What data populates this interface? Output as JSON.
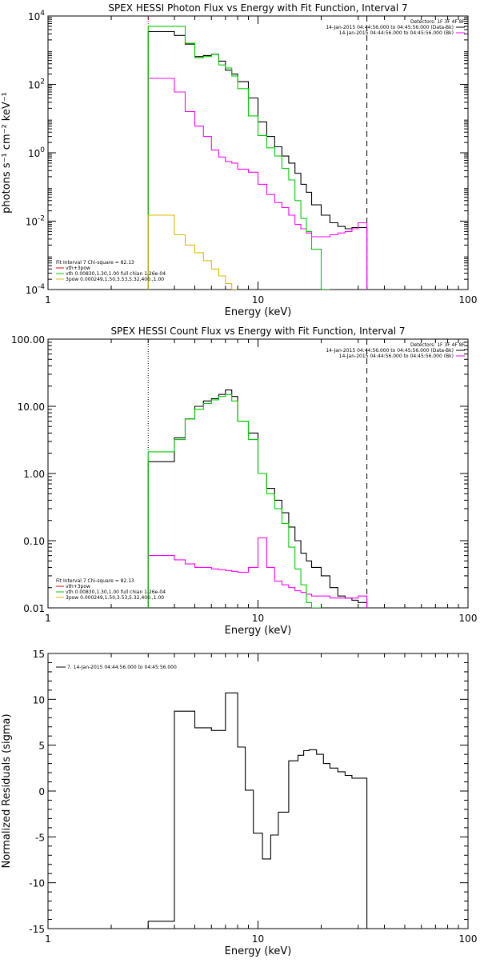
{
  "chart_data": [
    {
      "type": "line",
      "title": "SPEX HESSI Photon Flux vs Energy with Fit Function, Interval 7",
      "xlabel": "Energy (keV)",
      "ylabel": "photons s⁻¹ cm⁻² keV⁻¹",
      "xscale": "log",
      "yscale": "log",
      "xlim": [
        1,
        100
      ],
      "ylim": [
        0.0001,
        10000
      ],
      "xticks": [
        {
          "v": 1,
          "label": "1"
        },
        {
          "v": 10,
          "label": "10"
        },
        {
          "v": 100,
          "label": "100"
        }
      ],
      "yticks": [
        {
          "v": 0.0001,
          "base": "10",
          "exp": "-4"
        },
        {
          "v": 0.01,
          "base": "10",
          "exp": "-2"
        },
        {
          "v": 1,
          "base": "10",
          "exp": "0"
        },
        {
          "v": 100,
          "base": "10",
          "exp": "2"
        },
        {
          "v": 10000,
          "base": "10",
          "exp": "4"
        }
      ],
      "legend_top": {
        "header": "Detectors: 1F 3F 4F 8F",
        "entries": [
          {
            "text": "14-Jan-2015 04:44:56.000 to 04:45:56.000 (Data-Bk)",
            "color": "#000000"
          },
          {
            "text": "14-Jan-2015 04:44:56.000 to 04:45:56.000 (Bk)",
            "color": "#ff00ff"
          }
        ]
      },
      "legend_fit": {
        "header": "Fit Interval 7   Chi-square = 82.13",
        "entries": [
          {
            "text": "vth+3pow",
            "color": "#ff0000"
          },
          {
            "text": "vth 0.00830,1.30,1.00  full chian 1.26e-04",
            "color": "#00cc00"
          },
          {
            "text": "3pow 0.000249,1.50,3.53,5.32,400.,1.00",
            "color": "#ddbb00"
          }
        ]
      },
      "vlines": [
        {
          "x": 3.0,
          "style": "dotted",
          "color": "#ff0000"
        },
        {
          "x": 33.0,
          "style": "dashed",
          "color": "#000000"
        }
      ],
      "edges": [
        3.0,
        4.0,
        4.5,
        5.0,
        5.5,
        6.0,
        6.5,
        7.0,
        7.5,
        8.0,
        9.0,
        10.0,
        11.0,
        12.0,
        13.0,
        14.0,
        15.0,
        16.0,
        17.0,
        18.0,
        20.0,
        22.0,
        24.0,
        26.0,
        28.0,
        30.0,
        33.0
      ],
      "series": [
        {
          "name": "Data-Bk",
          "color": "#000000",
          "values": [
            3500,
            2700,
            1500,
            650,
            700,
            760,
            480,
            260,
            200,
            120,
            40,
            8,
            3,
            1.5,
            0.8,
            0.5,
            0.25,
            0.12,
            0.07,
            0.03,
            0.015,
            0.009,
            0.007,
            0.006,
            0.0065,
            0.0065
          ]
        },
        {
          "name": "Bk",
          "color": "#ff00ff",
          "values": [
            150,
            60,
            16,
            6,
            3,
            1.2,
            0.75,
            0.55,
            0.5,
            0.33,
            0.27,
            0.12,
            0.06,
            0.035,
            0.025,
            0.015,
            0.008,
            0.006,
            0.0045,
            0.0035,
            0.0035,
            0.004,
            0.0045,
            0.005,
            0.006,
            0.009
          ]
        },
        {
          "name": "vth+3pow",
          "color": "#00cc00",
          "values": [
            5000,
            5000,
            1600,
            600,
            650,
            750,
            370,
            300,
            175,
            75,
            12,
            3.2,
            1.4,
            0.8,
            0.35,
            0.16,
            0.04,
            0.012,
            0.005,
            0.0015,
            0.0001
          ]
        },
        {
          "name": "3pow",
          "color": "#ddbb00",
          "values": [
            0.015,
            0.004,
            0.002,
            0.0012,
            0.0007,
            0.0004,
            0.00025,
            0.00015,
            0.0001
          ]
        }
      ]
    },
    {
      "type": "line",
      "title": "SPEX HESSI Count Flux vs Energy with Fit Function, Interval 7",
      "xlabel": "Energy (keV)",
      "ylabel": "",
      "xscale": "log",
      "yscale": "log",
      "xlim": [
        1,
        100
      ],
      "ylim": [
        0.01,
        100
      ],
      "xticks": [
        {
          "v": 1,
          "label": "1"
        },
        {
          "v": 10,
          "label": "10"
        },
        {
          "v": 100,
          "label": "100"
        }
      ],
      "yticks": [
        {
          "v": 0.01,
          "label": "0.01"
        },
        {
          "v": 0.1,
          "label": "0.10"
        },
        {
          "v": 1,
          "label": "1.00"
        },
        {
          "v": 10,
          "label": "10.00"
        },
        {
          "v": 100,
          "label": "100.00"
        }
      ],
      "legend_top": {
        "header": "Detectors: 1F 3F 4F 8F",
        "entries": [
          {
            "text": "14-Jan-2015 04:44:56.000 to 04:45:56.000 (Data-Bk)",
            "color": "#000000"
          },
          {
            "text": "14-Jan-2015 04:44:56.000 to 04:45:56.000 (Bk)",
            "color": "#ff00ff"
          }
        ]
      },
      "legend_fit": {
        "header": "Fit Interval 7   Chi-square = 82.13",
        "entries": [
          {
            "text": "vth+3pow",
            "color": "#ff0000"
          },
          {
            "text": "vth 0.00830,1.30,1.00  full chian 1.26e-04",
            "color": "#00cc00"
          },
          {
            "text": "3pow 0.000249,1.50,3.53,5.32,400.,1.00",
            "color": "#ddbb00"
          }
        ]
      },
      "vlines": [
        {
          "x": 3.0,
          "style": "dotted",
          "color": "#000000"
        },
        {
          "x": 33.0,
          "style": "dashed",
          "color": "#000000"
        }
      ],
      "edges": [
        3.0,
        4.0,
        4.5,
        5.0,
        5.5,
        6.0,
        6.5,
        7.0,
        7.5,
        8.0,
        9.0,
        10.0,
        11.0,
        12.0,
        13.0,
        14.0,
        15.0,
        16.0,
        17.0,
        18.0,
        20.0,
        22.0,
        24.0,
        26.0,
        28.0,
        30.0,
        33.0
      ],
      "series": [
        {
          "name": "Data-Bk",
          "color": "#000000",
          "values": [
            1.5,
            3.4,
            6.5,
            10,
            12,
            13,
            15,
            17.5,
            14,
            6,
            4,
            1,
            0.6,
            0.4,
            0.26,
            0.16,
            0.1,
            0.065,
            0.05,
            0.04,
            0.03,
            0.02,
            0.015,
            0.014,
            0.013,
            0.012
          ]
        },
        {
          "name": "Bk",
          "color": "#ff00ff",
          "values": [
            0.06,
            0.052,
            0.045,
            0.04,
            0.04,
            0.038,
            0.037,
            0.036,
            0.035,
            0.034,
            0.04,
            0.11,
            0.04,
            0.025,
            0.022,
            0.02,
            0.018,
            0.017,
            0.016,
            0.015,
            0.015,
            0.014,
            0.014,
            0.014,
            0.014,
            0.015
          ]
        },
        {
          "name": "vth+3pow",
          "color": "#00cc00",
          "values": [
            2.1,
            3.2,
            6.5,
            9,
            11,
            12.5,
            14,
            15,
            12,
            6,
            3.2,
            1,
            0.5,
            0.3,
            0.18,
            0.08,
            0.038,
            0.022,
            0.012,
            0.008
          ]
        }
      ]
    },
    {
      "type": "line",
      "title": "",
      "xlabel": "Energy (keV)",
      "ylabel": "Normalized Residuals (sigma)",
      "xscale": "log",
      "yscale": "linear",
      "xlim": [
        1,
        100
      ],
      "ylim": [
        -15,
        15
      ],
      "xticks": [
        {
          "v": 1,
          "label": "1"
        },
        {
          "v": 10,
          "label": "10"
        },
        {
          "v": 100,
          "label": "100"
        }
      ],
      "yticks": [
        {
          "v": -15,
          "label": "-15"
        },
        {
          "v": -10,
          "label": "-10"
        },
        {
          "v": -5,
          "label": "-5"
        },
        {
          "v": 0,
          "label": "0"
        },
        {
          "v": 5,
          "label": "5"
        },
        {
          "v": 10,
          "label": "10"
        },
        {
          "v": 15,
          "label": "15"
        }
      ],
      "legend_top": {
        "header": "",
        "entries": [
          {
            "text": "7. 14-Jan-2015 04:44:56.000 to 04:45:56.000",
            "color": "#000000"
          }
        ]
      },
      "vlines": [],
      "edges": [
        3.0,
        4.0,
        5.0,
        6.0,
        7.0,
        8.0,
        8.7,
        9.5,
        10.5,
        11.5,
        12.5,
        14.0,
        15.5,
        16.5,
        17.5,
        19.0,
        20.5,
        22.0,
        24.0,
        26.0,
        28.0,
        30.0,
        33.0
      ],
      "series": [
        {
          "name": "7",
          "color": "#000000",
          "values": [
            -14.2,
            8.7,
            6.9,
            6.6,
            10.7,
            4.8,
            0.1,
            -4.6,
            -7.4,
            -4.8,
            -2.3,
            3.3,
            3.9,
            4.4,
            4.5,
            4.0,
            3.0,
            2.5,
            2.1,
            1.7,
            1.4,
            1.4
          ]
        }
      ]
    }
  ]
}
